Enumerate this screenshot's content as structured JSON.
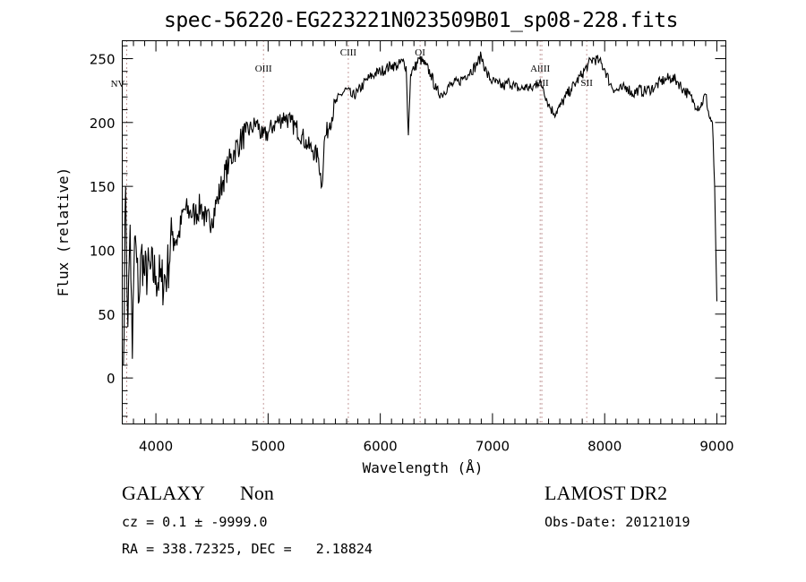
{
  "chart_data": {
    "type": "line",
    "title": "spec-56220-EG223221N023509B01_sp08-228.fits",
    "xlabel": "Wavelength (Å)",
    "ylabel": "Flux (relative)",
    "xlim": [
      3700,
      9080
    ],
    "ylim": [
      -36,
      264
    ],
    "xticks": [
      4000,
      5000,
      6000,
      7000,
      8000,
      9000
    ],
    "xtick_labels": [
      "4000",
      "5000",
      "6000",
      "7000",
      "8000",
      "9000"
    ],
    "yticks": [
      0,
      50,
      100,
      150,
      200,
      250
    ],
    "ytick_labels": [
      "0",
      "50",
      "100",
      "150",
      "200",
      "250"
    ],
    "grid": false,
    "series": [
      {
        "name": "spectrum",
        "x": [
          3710,
          3730,
          3750,
          3770,
          3790,
          3810,
          3830,
          3850,
          3870,
          3900,
          3950,
          4000,
          4050,
          4100,
          4150,
          4200,
          4250,
          4300,
          4350,
          4400,
          4450,
          4500,
          4550,
          4600,
          4650,
          4700,
          4750,
          4800,
          4850,
          4900,
          4950,
          5000,
          5050,
          5100,
          5150,
          5200,
          5250,
          5300,
          5350,
          5400,
          5450,
          5480,
          5500,
          5550,
          5600,
          5650,
          5700,
          5750,
          5800,
          5850,
          5900,
          5950,
          6000,
          6050,
          6100,
          6150,
          6200,
          6230,
          6250,
          6270,
          6300,
          6350,
          6400,
          6450,
          6500,
          6550,
          6600,
          6650,
          6700,
          6750,
          6800,
          6850,
          6900,
          6950,
          7000,
          7050,
          7100,
          7150,
          7200,
          7250,
          7300,
          7350,
          7400,
          7450,
          7500,
          7550,
          7600,
          7650,
          7700,
          7750,
          7800,
          7850,
          7900,
          7950,
          8000,
          8050,
          8100,
          8150,
          8200,
          8250,
          8300,
          8350,
          8400,
          8450,
          8500,
          8550,
          8600,
          8650,
          8700,
          8750,
          8800,
          8850,
          8900,
          8930,
          8960,
          8980,
          9000
        ],
        "y": [
          10,
          150,
          40,
          120,
          15,
          110,
          90,
          60,
          100,
          80,
          85,
          80,
          75,
          82,
          115,
          110,
          132,
          130,
          128,
          135,
          122,
          125,
          140,
          155,
          168,
          178,
          185,
          192,
          195,
          200,
          188,
          192,
          198,
          202,
          205,
          200,
          196,
          190,
          182,
          178,
          172,
          150,
          185,
          200,
          215,
          222,
          226,
          220,
          224,
          230,
          235,
          238,
          240,
          242,
          245,
          244,
          248,
          244,
          190,
          238,
          242,
          250,
          245,
          238,
          225,
          222,
          228,
          230,
          232,
          236,
          240,
          244,
          252,
          238,
          232,
          230,
          228,
          232,
          228,
          226,
          228,
          226,
          232,
          228,
          214,
          207,
          212,
          220,
          226,
          232,
          238,
          245,
          250,
          248,
          242,
          230,
          225,
          226,
          228,
          222,
          226,
          224,
          226,
          228,
          232,
          234,
          235,
          232,
          226,
          222,
          215,
          212,
          222,
          205,
          200,
          150,
          60
        ]
      }
    ],
    "line_markers": [
      {
        "label": "NV",
        "x": 3740
      },
      {
        "label": "OIII",
        "x": 4959
      },
      {
        "label": "CIII",
        "x": 5715
      },
      {
        "label": "OI",
        "x": 6355
      },
      {
        "label": "AlIII",
        "x": 7425
      },
      {
        "label": "OII",
        "x": 7440
      },
      {
        "label": "SII",
        "x": 7840
      }
    ]
  },
  "footer": {
    "object_class": "GALAXY",
    "subclass": "Non",
    "cz": "cz = 0.1 ± -9999.0",
    "radec": "RA = 338.72325, DEC =   2.18824",
    "survey": "LAMOST DR2",
    "obs_date": "Obs-Date: 20121019"
  },
  "colors": {
    "line": "#000000",
    "marker": "#8b3a3a"
  }
}
